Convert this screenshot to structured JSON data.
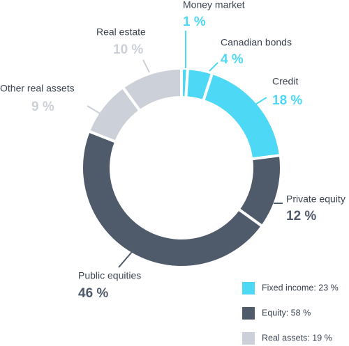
{
  "chart_data": {
    "type": "donut",
    "categories": [
      "Money market",
      "Canadian bonds",
      "Credit",
      "Private equity",
      "Public equities",
      "Other real assets",
      "Real estate"
    ],
    "values": [
      1,
      4,
      18,
      12,
      46,
      9,
      10
    ],
    "value_labels": [
      "1 %",
      "4 %",
      "18 %",
      "12 %",
      "46 %",
      "9 %",
      "10 %"
    ],
    "colors": [
      "#4dd9f5",
      "#4dd9f5",
      "#4dd9f5",
      "#4f5a6b",
      "#4f5a6b",
      "#ccd0d8",
      "#ccd0d8"
    ],
    "legend": [
      {
        "label": "Fixed income: 23 %",
        "color": "#4dd9f5"
      },
      {
        "label": "Equity: 58 %",
        "color": "#4f5a6b"
      },
      {
        "label": "Real assets: 19 %",
        "color": "#ccd0d8"
      }
    ]
  }
}
